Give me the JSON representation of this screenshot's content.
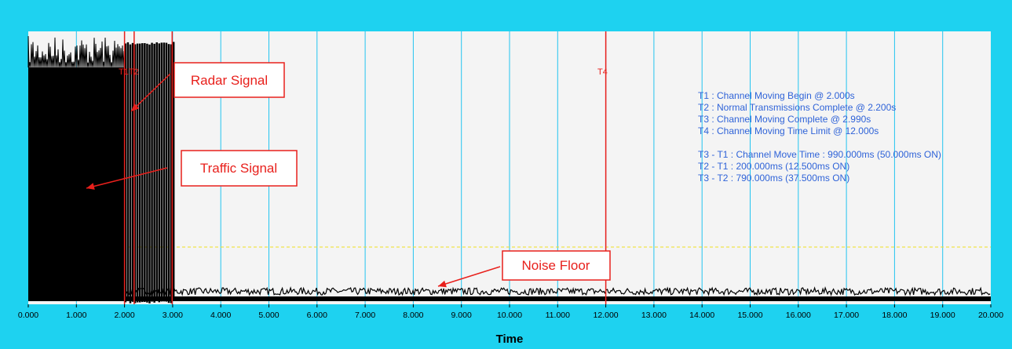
{
  "chart_data": {
    "type": "line",
    "title": "",
    "xlabel": "Time",
    "ylabel": "",
    "xlim": [
      0,
      20
    ],
    "x_ticks": [
      "0.000",
      "1.000",
      "2.000",
      "3.000",
      "4.000",
      "5.000",
      "6.000",
      "7.000",
      "8.000",
      "9.000",
      "10.000",
      "11.000",
      "12.000",
      "13.000",
      "14.000",
      "15.000",
      "16.000",
      "17.000",
      "18.000",
      "19.000",
      "20.000"
    ],
    "grid": "vertical gridlines at each 1.000 s",
    "series": [
      {
        "description_free": true,
        "segments": [
          {
            "x_start": 0.0,
            "x_end": 2.0,
            "level": "high",
            "kind": "dense"
          },
          {
            "x_start": 2.0,
            "x_end": 3.0,
            "level": "high",
            "kind": "pulses"
          },
          {
            "x_start": 3.0,
            "x_end": 20.0,
            "level": "low",
            "kind": "noise"
          }
        ]
      }
    ],
    "threshold_line": {
      "style": "dashed",
      "color": "#f0e020"
    },
    "markers": [
      {
        "label": "T1",
        "x": 2.0
      },
      {
        "label": "T2",
        "x": 2.2
      },
      {
        "label": "T3",
        "x": 2.99
      },
      {
        "label": "T4",
        "x": 12.0
      }
    ],
    "marker_labels_text": "T1T2",
    "marker_label_t4": "T4",
    "info_lines": [
      "T1 : Channel Moving Begin @ 2.000s",
      "T2 : Normal Transmissions Complete @ 2.200s",
      "T3 : Channel Moving Complete @ 2.990s",
      "T4 : Channel Moving Time Limit @ 12.000s",
      "",
      "T3 - T1 : Channel Move Time : 990.000ms (50.000ms ON)",
      "T2 - T1 : 200.000ms (12.500ms ON)",
      "T3 - T2 : 790.000ms (37.500ms ON)"
    ],
    "annotations": [
      {
        "text": "Radar Signal"
      },
      {
        "text": "Traffic Signal"
      },
      {
        "text": "Noise Floor"
      }
    ],
    "colors": {
      "frame": "#1ed2f0",
      "plot_bg": "#f4f4f4",
      "grid": "#22c4f0",
      "signal": "#000000",
      "marker": "#e8201c",
      "info_text": "#2f63d8"
    }
  }
}
